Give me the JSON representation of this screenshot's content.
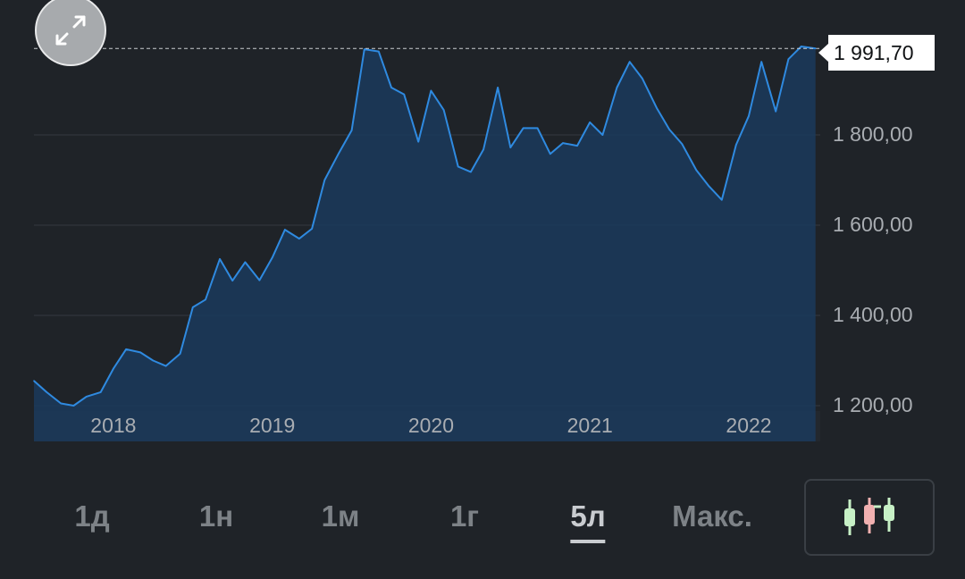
{
  "chart_data": {
    "type": "area",
    "x_ticks": [
      "2018",
      "2019",
      "2020",
      "2021",
      "2022"
    ],
    "y_ticks": [
      "1 200,00",
      "1 400,00",
      "1 600,00",
      "1 800,00"
    ],
    "ylim": [
      1140,
      2080
    ],
    "xlim": [
      2017.5,
      2022.45
    ],
    "current_value": 1991.7,
    "current_label": "1 991,70",
    "grid": true,
    "colors": {
      "line": "#2f8ae0",
      "fill": "#1b3a5c"
    },
    "series": [
      {
        "x": [
          2017.5,
          2017.58,
          2017.67,
          2017.75,
          2017.83,
          2017.92,
          2018.0,
          2018.08,
          2018.17,
          2018.25,
          2018.33,
          2018.42,
          2018.5,
          2018.58,
          2018.67,
          2018.75,
          2018.83,
          2018.92,
          2019.0,
          2019.08,
          2019.17,
          2019.25,
          2019.33,
          2019.42,
          2019.5,
          2019.58,
          2019.67,
          2019.75,
          2019.83,
          2019.92,
          2020.0,
          2020.08,
          2020.17,
          2020.25,
          2020.33,
          2020.42,
          2020.5,
          2020.58,
          2020.67,
          2020.75,
          2020.83,
          2020.92,
          2021.0,
          2021.08,
          2021.17,
          2021.25,
          2021.33,
          2021.42,
          2021.5,
          2021.58,
          2021.67,
          2021.75,
          2021.83,
          2021.92,
          2022.0,
          2022.08,
          2022.17,
          2022.25,
          2022.33,
          2022.42
        ],
        "values": [
          1255,
          1230,
          1205,
          1200,
          1220,
          1230,
          1282,
          1325,
          1318,
          1300,
          1288,
          1315,
          1418,
          1435,
          1525,
          1477,
          1518,
          1478,
          1528,
          1590,
          1570,
          1592,
          1700,
          1760,
          1810,
          1990,
          1985,
          1905,
          1890,
          1785,
          1898,
          1855,
          1730,
          1718,
          1768,
          1905,
          1772,
          1815,
          1815,
          1758,
          1782,
          1776,
          1828,
          1800,
          1905,
          1962,
          1925,
          1860,
          1812,
          1780,
          1722,
          1686,
          1656,
          1778,
          1842,
          1962,
          1852,
          1968,
          1996,
          1991.7
        ]
      }
    ]
  },
  "range_tabs": [
    {
      "label": "1д",
      "active": false
    },
    {
      "label": "1н",
      "active": false
    },
    {
      "label": "1м",
      "active": false
    },
    {
      "label": "1г",
      "active": false
    },
    {
      "label": "5л",
      "active": true
    },
    {
      "label": "Макс.",
      "active": false
    }
  ],
  "icons": {
    "expand": "expand-arrows-icon",
    "candles": "candlestick-icon"
  },
  "colors": {
    "background": "#1f2328",
    "candle_green": "#c7f0c6",
    "candle_red": "#f1b0b0"
  }
}
